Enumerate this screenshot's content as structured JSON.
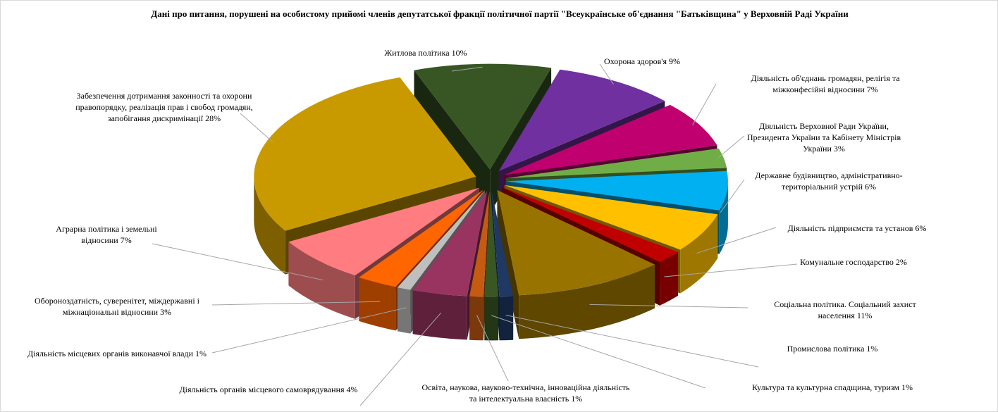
{
  "chart_data": {
    "type": "pie",
    "title": "Дані про питання, порушені на особистому прийомі  членів депутатської фракції політичної партії \"Всеукраїнське об'єднання \"Батьківщина\" у Верховній Раді України",
    "categories": [
      "Житлова політика",
      "Охорона здоров'я",
      "Діяльність  об'єднань громадян, релігія та міжконфесійні відносини",
      "Діяльність  Верховної Ради України, Президента  України та Кабінету  Міністрів України",
      "Державне будівництво,  адміністративно-територіальний  устрій",
      "Діяльність  підприємств та установ",
      "Комунальне господарство",
      "Соціальна політика.  Соціальний захист населення",
      "Промислова політика",
      "Культура та культурна спадщина, туризм",
      "Освіта,  наукова, науково-технічна,  інноваційна діяльність  та інтелектуальна  власність",
      "Діяльність  органів місцевого самоврядування",
      "Діяльність  місцевих органів виконавчої влади",
      "Обороноздатність,  суверенітет,  міждержавні і міжнаціональні  відносини",
      "Аграрна політика  і земельні відносини",
      "Забезпечення дотримання законності та охорони правопорядку, реалізація прав і свобод громадян, запобігання дискримінації"
    ],
    "values": [
      10,
      9,
      7,
      3,
      6,
      6,
      2,
      11,
      1,
      1,
      1,
      4,
      1,
      3,
      7,
      28
    ],
    "value_labels": [
      "10%",
      "9%",
      "7%",
      "3%",
      "6%",
      "6%",
      "2%",
      "11%",
      "1%",
      "1%",
      "1%",
      "4%",
      "1%",
      "3%",
      "7%",
      "28%"
    ],
    "colors": [
      "#375623",
      "#7030a0",
      "#c0006e",
      "#70ad47",
      "#00b0f0",
      "#ffc000",
      "#c00000",
      "#997300",
      "#1f3864",
      "#385723",
      "#c55a11",
      "#99335f",
      "#bfbfbf",
      "#ff6600",
      "#ff7c80",
      "#c99a00"
    ]
  }
}
